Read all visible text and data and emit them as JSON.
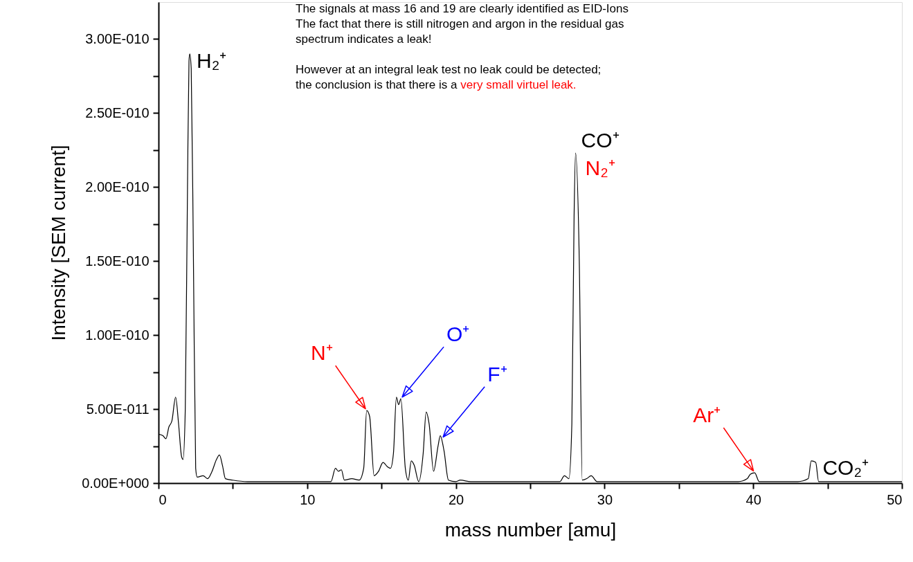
{
  "chart_data": {
    "type": "line",
    "xlabel": "mass number [amu]",
    "ylabel": "Intensity [SEM current]",
    "series": [
      {
        "color": "#000000",
        "x": [
          0,
          0.3,
          0.5,
          0.7,
          0.9,
          1.15,
          1.35,
          1.55,
          1.65,
          1.8,
          1.95,
          2.05,
          2.1,
          2.2,
          2.35,
          2.5,
          2.6,
          3.0,
          3.3,
          3.6,
          3.9,
          4.1,
          4.3,
          4.5,
          5,
          6,
          8,
          11,
          11.6,
          11.9,
          12.1,
          12.3,
          12.5,
          13,
          13.5,
          13.8,
          14.0,
          14.2,
          14.5,
          14.8,
          15.1,
          15.4,
          15.6,
          15.8,
          16.0,
          16.15,
          16.3,
          16.6,
          16.8,
          17.0,
          17.2,
          17.5,
          17.8,
          18.0,
          18.2,
          18.5,
          18.8,
          18.95,
          19.2,
          19.5,
          20,
          20.3,
          21,
          25,
          26,
          27,
          27.3,
          27.6,
          27.8,
          27.95,
          28.05,
          28.3,
          28.5,
          28.8,
          29.1,
          29.5,
          35,
          39,
          39.6,
          39.8,
          40.1,
          40.4,
          43,
          43.7,
          43.9,
          44.2,
          44.4,
          50
        ],
        "values": [
          3.3e-11,
          3.2e-11,
          3e-11,
          3.8e-11,
          4.2e-11,
          5.8e-11,
          4e-11,
          1.8e-11,
          1.6e-11,
          5e-11,
          2e-10,
          2.85e-10,
          2.9e-10,
          2.8e-10,
          1.5e-10,
          1e-11,
          4e-12,
          5e-12,
          3e-12,
          8e-12,
          1.6e-11,
          1.9e-11,
          1.2e-11,
          3e-12,
          2e-12,
          1e-12,
          1e-12,
          1e-12,
          1e-12,
          1e-11,
          8e-12,
          9e-12,
          2e-12,
          3e-12,
          2e-12,
          1e-11,
          4.9e-11,
          4.5e-11,
          5e-12,
          8e-12,
          1.4e-11,
          1.1e-11,
          1e-11,
          2e-11,
          5.8e-11,
          5.3e-11,
          5.7e-11,
          1e-11,
          2e-12,
          1.5e-11,
          1.2e-11,
          1e-12,
          2e-11,
          4.8e-11,
          4e-11,
          8e-12,
          2.5e-11,
          3.2e-11,
          2.2e-11,
          2e-12,
          1e-12,
          2e-12,
          1e-12,
          1e-12,
          1e-12,
          1e-12,
          5e-12,
          3e-12,
          4e-11,
          1.8e-10,
          2.23e-10,
          1.5e-10,
          2e-12,
          3e-12,
          5e-12,
          1e-12,
          1e-12,
          1e-12,
          3e-12,
          6e-12,
          7e-12,
          1e-12,
          1e-12,
          3e-12,
          1.5e-11,
          1.4e-11,
          1e-12,
          1e-12
        ]
      }
    ],
    "xlim": [
      0,
      50
    ],
    "xticks": [
      0,
      {
        "value": 5,
        "label": null
      },
      10,
      {
        "value": 15,
        "label": null
      },
      20,
      {
        "value": 25,
        "label": null
      },
      30,
      {
        "value": 35,
        "label": null
      },
      40,
      {
        "value": 45,
        "label": null
      },
      50
    ],
    "ylim": [
      0,
      3.25e-10
    ],
    "yticks": [
      {
        "value": 0,
        "label": "0.00E+000"
      },
      {
        "value": 2.5e-11,
        "label": null
      },
      {
        "value": 5e-11,
        "label": "5.00E-011"
      },
      {
        "value": 7.5e-11,
        "label": null
      },
      {
        "value": 1e-10,
        "label": "1.00E-010"
      },
      {
        "value": 1.25e-10,
        "label": null
      },
      {
        "value": 1.5e-10,
        "label": "1.50E-010"
      },
      {
        "value": 1.75e-10,
        "label": null
      },
      {
        "value": 2e-10,
        "label": "2.00E-010"
      },
      {
        "value": 2.25e-10,
        "label": null
      },
      {
        "value": 2.5e-10,
        "label": "2.50E-010"
      },
      {
        "value": 2.75e-10,
        "label": null
      },
      {
        "value": 3e-10,
        "label": "3.00E-010"
      }
    ],
    "grid": false,
    "annotations": [
      "The signals at mass 16 and 19 are clearly identified as EID-Ions",
      "The fact that there is still nitrogen and argon in the residual gas",
      "spectrum indicates a leak!",
      "However at an integral leak test no leak could be detected;",
      "the conclusion is that there is a ",
      "very small virtuel leak.",
      {
        "text": "H₂⁺",
        "x": 2.1,
        "y": 2.9e-10
      },
      {
        "text": "CO⁺",
        "x": 28.05,
        "y": 2.23e-10
      },
      {
        "text": "N₂⁺",
        "x": 28.05,
        "y": 2.23e-10
      },
      {
        "text": "N⁺",
        "x": 14.0,
        "y": 4.9e-11
      },
      {
        "text": "O⁺",
        "x": 16.3,
        "y": 5.7e-11
      },
      {
        "text": "F⁺",
        "x": 19.05,
        "y": 3e-11
      },
      {
        "text": "Ar⁺",
        "x": 40.1,
        "y": 7e-12
      },
      {
        "text": "CO₂⁺",
        "x": 44.2,
        "y": 1.5e-11
      }
    ]
  }
}
